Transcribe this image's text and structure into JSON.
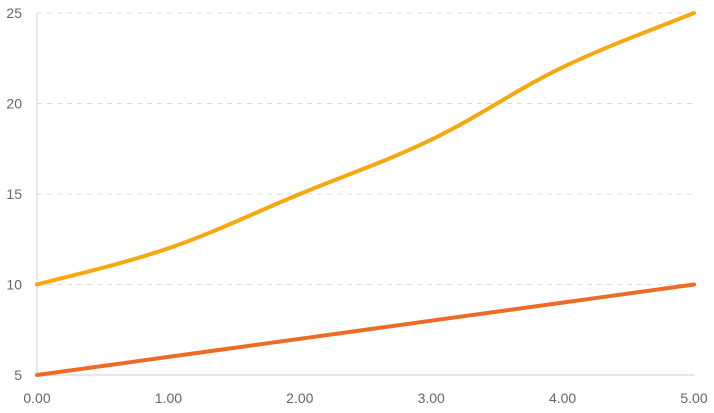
{
  "chart_data": {
    "type": "line",
    "title": "",
    "xlabel": "",
    "ylabel": "",
    "x": [
      0,
      1,
      2,
      3,
      4,
      5
    ],
    "x_tick_labels": [
      "0.00",
      "1.00",
      "2.00",
      "3.00",
      "4.00",
      "5.00"
    ],
    "xlim": [
      0,
      5
    ],
    "ylim": [
      5,
      25
    ],
    "y_ticks": [
      5,
      10,
      15,
      20,
      25
    ],
    "y_tick_labels": [
      "5",
      "10",
      "15",
      "20",
      "25"
    ],
    "grid": true,
    "legend": "none",
    "series": [
      {
        "color": "#f5a90f",
        "values": [
          10,
          12,
          15,
          18,
          22,
          25
        ]
      },
      {
        "color": "#ee6b25",
        "values": [
          5,
          6,
          7,
          8,
          9,
          10
        ]
      }
    ]
  }
}
